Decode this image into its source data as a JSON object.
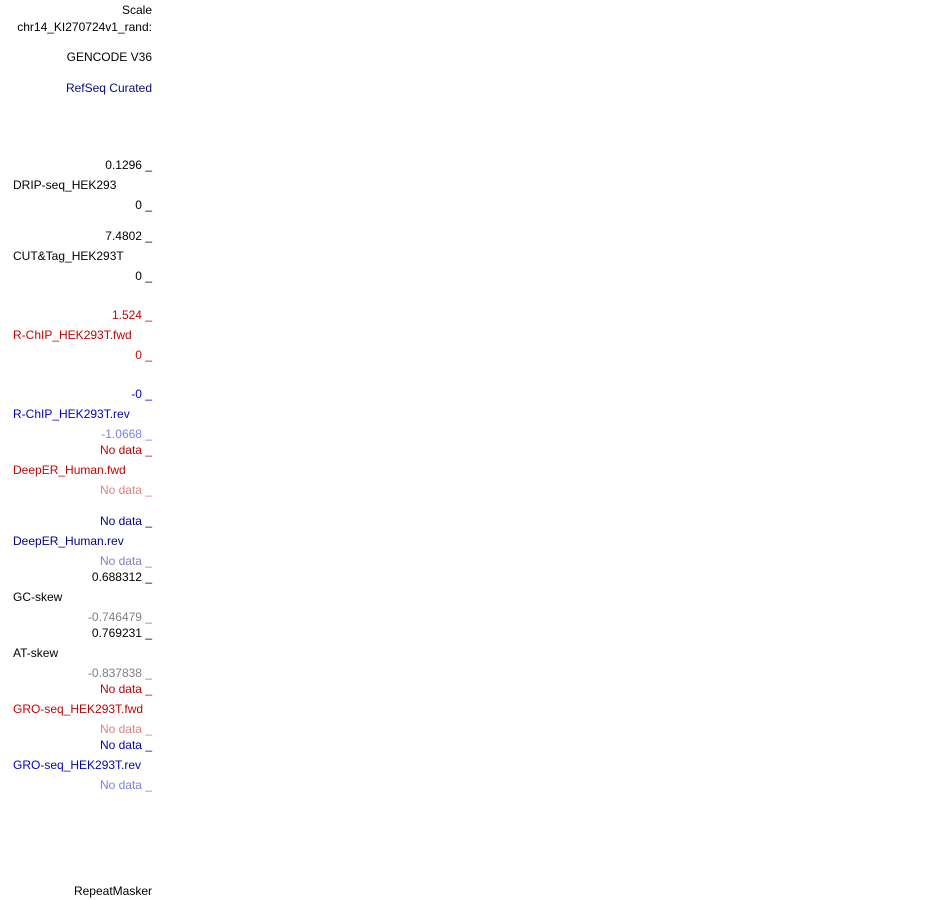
{
  "header": {
    "scale_label": "Scale",
    "chrom_label": "chr14_KI270724v1_rand:"
  },
  "tracks": {
    "gencode": {
      "name": "GENCODE V36"
    },
    "refseq": {
      "name": "RefSeq Curated",
      "color": "#0c0c78"
    },
    "drip_seq": {
      "name": "DRIP-seq_HEK293",
      "max": "0.1296",
      "min": "0"
    },
    "cut_tag": {
      "name": "CUT&Tag_HEK293T",
      "max": "7.4802",
      "min": "0"
    },
    "rchip_fwd": {
      "name": "R-ChIP_HEK293T.fwd",
      "max": "1.524",
      "min": "0",
      "color": "#c80000"
    },
    "rchip_rev": {
      "name": "R-ChIP_HEK293T.rev",
      "max": "-0",
      "min": "-1.0668",
      "color": "#0000c8",
      "light_color": "#7f7fe3"
    },
    "deeper_fwd": {
      "name": "DeepER_Human.fwd",
      "max": "No data",
      "min": "No data",
      "color": "#c80000",
      "light_color": "#e37f7f"
    },
    "deeper_rev": {
      "name": "DeepER_Human.rev",
      "max": "No data",
      "min": "No data",
      "color": "#00008c",
      "light_color": "#7f7fc5"
    },
    "gc_skew": {
      "name": "GC-skew",
      "max": "0.688312",
      "min": "-0.746479",
      "light_color": "#7f7f7f"
    },
    "at_skew": {
      "name": "AT-skew",
      "max": "0.769231",
      "min": "-0.837838",
      "light_color": "#7f7f7f"
    },
    "gro_fwd": {
      "name": "GRO-seq_HEK293T.fwd",
      "max": "No data",
      "min": "No data",
      "color": "#c80000",
      "light_color": "#e37f7f"
    },
    "gro_rev": {
      "name": "GRO-seq_HEK293T.rev",
      "max": "No data",
      "min": "No data",
      "color": "#0000c8",
      "light_color": "#7f7fe3"
    },
    "repeatmasker": {
      "name": "RepeatMasker"
    }
  }
}
